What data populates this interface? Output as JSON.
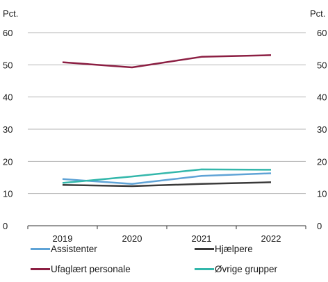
{
  "chart_data": {
    "type": "line",
    "y_unit_left": "Pct.",
    "y_unit_right": "Pct.",
    "ylim": [
      0,
      60
    ],
    "yticks": [
      "0",
      "10",
      "20",
      "30",
      "40",
      "50",
      "60"
    ],
    "categories": [
      "2019",
      "2020",
      "2021",
      "2022"
    ],
    "grid": true,
    "legend_position": "bottom",
    "series": [
      {
        "name": "Assistenter",
        "color": "#5fa3d6",
        "values": [
          14.5,
          13.0,
          15.5,
          16.3
        ]
      },
      {
        "name": "Hjælpere",
        "color": "#3a3a3a",
        "values": [
          12.7,
          12.3,
          13.0,
          13.5
        ]
      },
      {
        "name": "Ufaglært personale",
        "color": "#8c1f43",
        "values": [
          50.8,
          49.2,
          52.5,
          53.0
        ]
      },
      {
        "name": "Øvrige grupper",
        "color": "#33b7ab",
        "values": [
          13.3,
          15.3,
          17.5,
          17.4
        ]
      }
    ]
  }
}
